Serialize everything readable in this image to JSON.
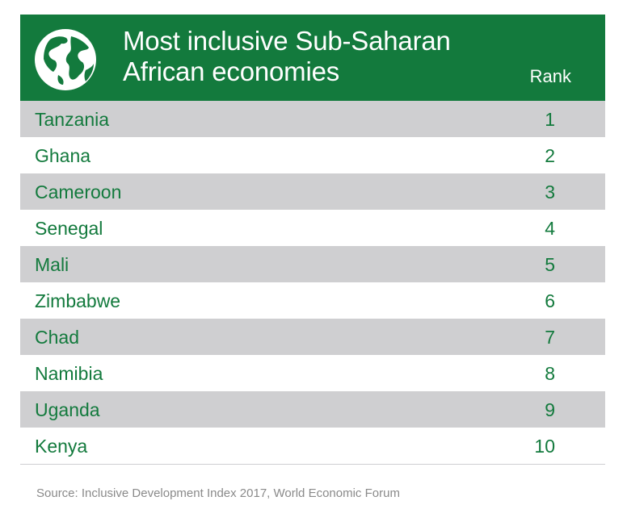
{
  "chart_data": {
    "type": "table",
    "title": "Most inclusive Sub-Saharan African economies",
    "columns": [
      "",
      "Rank"
    ],
    "rows": [
      {
        "country": "Tanzania",
        "rank": "1"
      },
      {
        "country": "Ghana",
        "rank": "2"
      },
      {
        "country": "Cameroon",
        "rank": "3"
      },
      {
        "country": "Senegal",
        "rank": "4"
      },
      {
        "country": "Mali",
        "rank": "5"
      },
      {
        "country": "Zimbabwe",
        "rank": "6"
      },
      {
        "country": "Chad",
        "rank": "7"
      },
      {
        "country": "Namibia",
        "rank": "8"
      },
      {
        "country": "Uganda",
        "rank": "9"
      },
      {
        "country": "Kenya",
        "rank": "10"
      }
    ],
    "source": "Source: Inclusive Development Index 2017, World Economic Forum"
  },
  "header": {
    "title": "Most inclusive Sub-Saharan African economies",
    "rank_label": "Rank",
    "icon": "globe-icon"
  },
  "colors": {
    "header_bg": "#137a3d",
    "row_shade": "#cfcfd1",
    "text_green": "#137a3d"
  }
}
